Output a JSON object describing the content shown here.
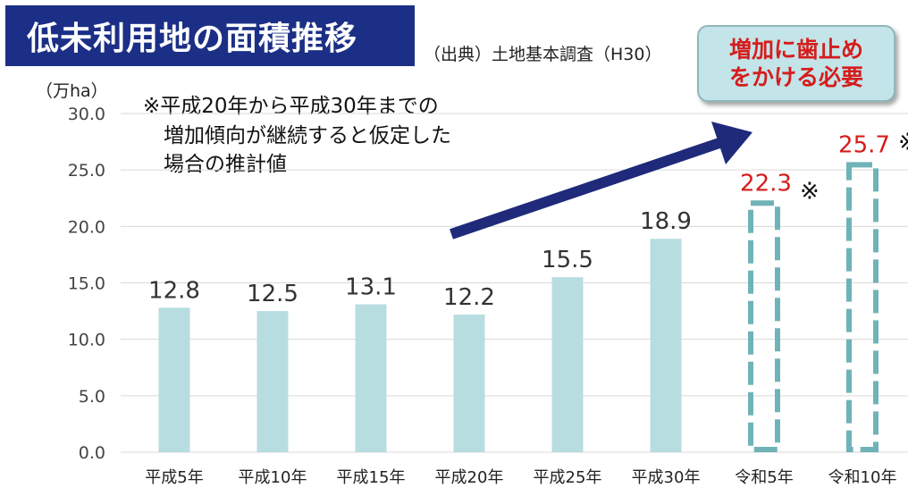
{
  "title": "低未利用地の面積推移",
  "source": "（出典）土地基本調査（H30）",
  "callout": "増加に歯止め\nをかける必要",
  "note": "※平成20年から平成30年までの\n　増加傾向が継続すると仮定した\n　場合の推計値",
  "chart_data": {
    "type": "bar",
    "ylabel": "（万ha）",
    "ylim": [
      0,
      30
    ],
    "yticks": [
      "0.0",
      "5.0",
      "10.0",
      "15.0",
      "20.0",
      "25.0",
      "30.0"
    ],
    "categories": [
      "平成5年",
      "平成10年",
      "平成15年",
      "平成20年",
      "平成25年",
      "平成30年",
      "令和5年",
      "令和10年"
    ],
    "values": [
      12.8,
      12.5,
      13.1,
      12.2,
      15.5,
      18.9,
      22.3,
      25.7
    ],
    "labels": [
      "12.8",
      "12.5",
      "13.1",
      "12.2",
      "15.5",
      "18.9",
      "22.3",
      "25.7"
    ],
    "estimated": [
      false,
      false,
      false,
      false,
      false,
      false,
      true,
      true
    ],
    "estimate_mark": "※",
    "grid": true,
    "colors": {
      "bar": "#b7dde1",
      "estimate_outline": "#6fb3b8",
      "estimate_label": "#d61c1c",
      "label": "#333333",
      "grid": "#d9d9d9",
      "arrow": "#1f2a7a"
    }
  }
}
